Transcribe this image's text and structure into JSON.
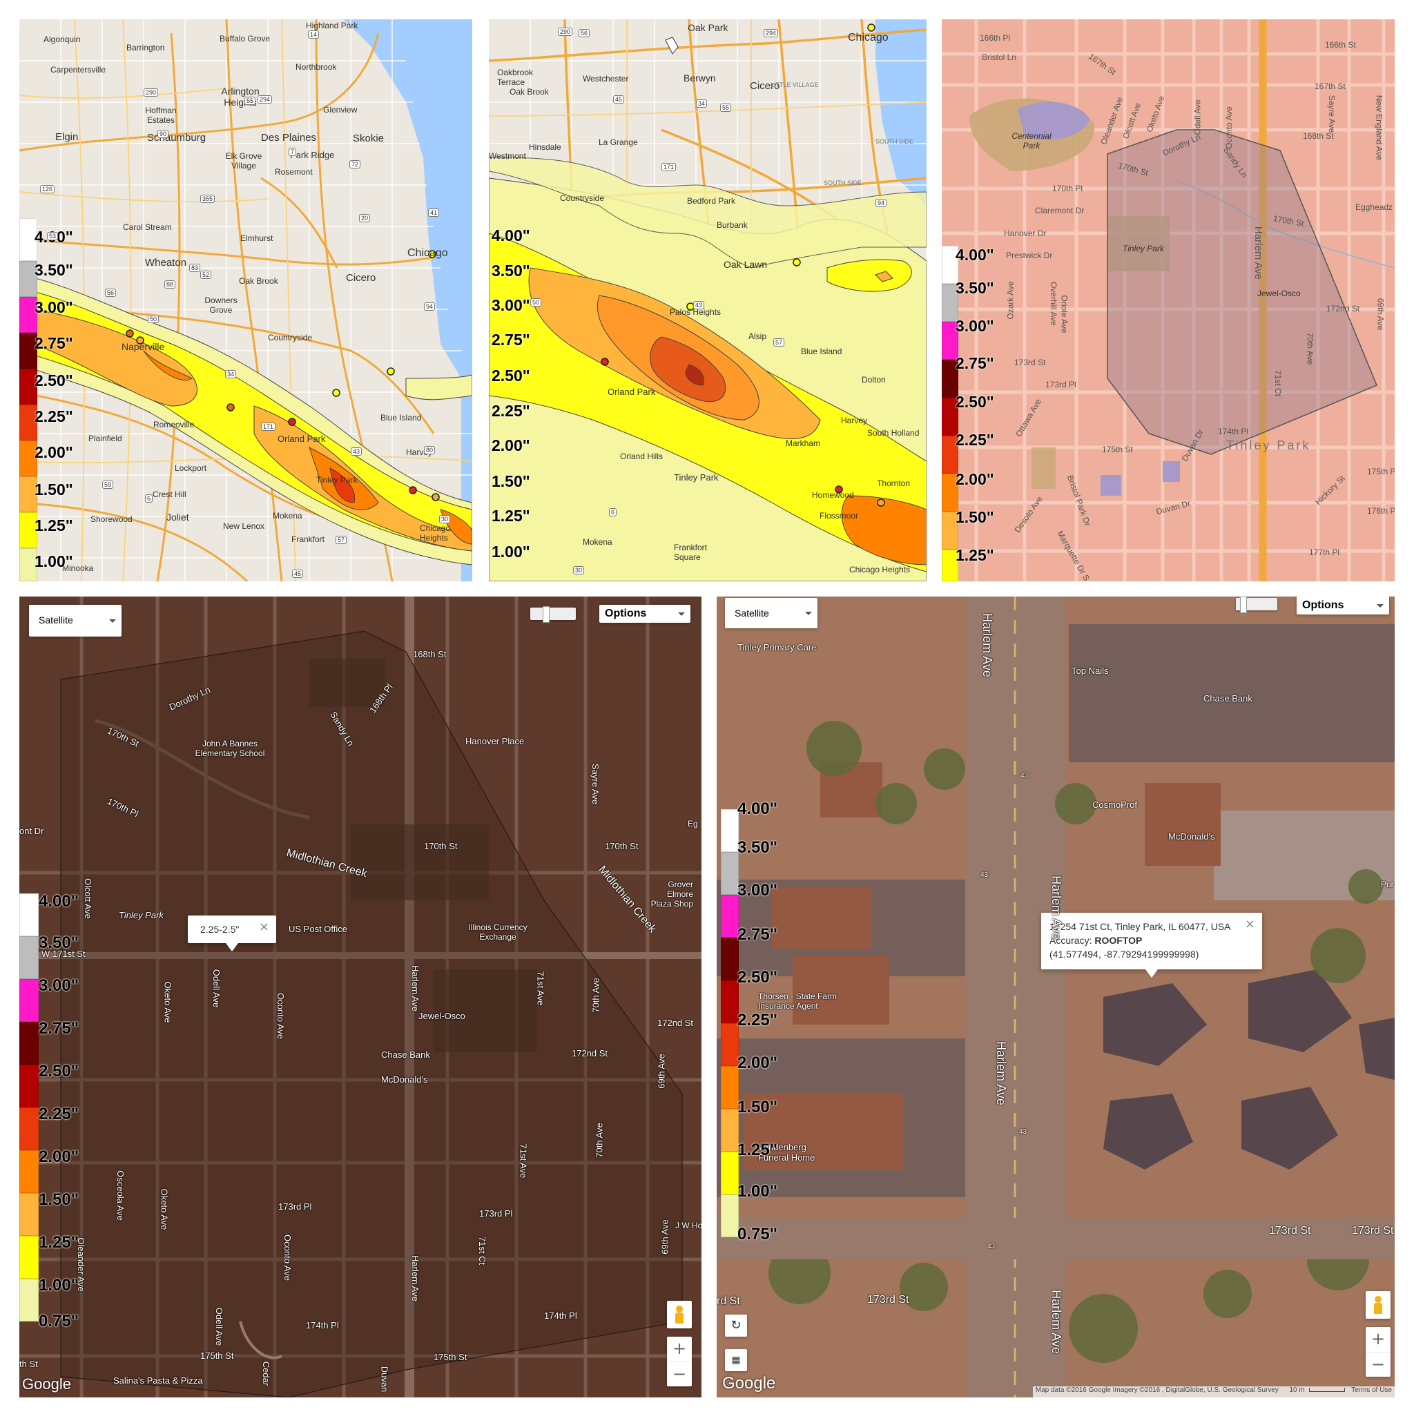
{
  "legend": {
    "ticks_a": [
      "4.00\"",
      "3.50\"",
      "3.00\"",
      "2.75\"",
      "2.50\"",
      "2.25\"",
      "2.00\"",
      "1.50\"",
      "1.25\"",
      "1.00\""
    ],
    "ticks_b": [
      "4.00\"",
      "3.50\"",
      "3.00\"",
      "2.75\"",
      "2.50\"",
      "2.25\"",
      "2.00\"",
      "1.50\"",
      "1.25\""
    ],
    "ticks_c": [
      "4.00\"",
      "3.50\"",
      "3.00\"",
      "2.75\"",
      "2.50\"",
      "2.25\"",
      "2.00\"",
      "1.50\"",
      "1.25\"",
      "1.00\"",
      "0.75\""
    ],
    "colors": [
      "#ffffff",
      "#bdbdbd",
      "#ff19c8",
      "#6b0000",
      "#b30000",
      "#ea3a0c",
      "#ff8300",
      "#ffb43c",
      "#ffff00",
      "#f0f4a6"
    ]
  },
  "panel1": {
    "cities": [
      "Highland Park",
      "Buffalo Grove",
      "Algonquin",
      "Barrington",
      "Northbrook",
      "Carpentersville",
      "Arlington Heights",
      "Glenview",
      "Hoffman Estates",
      "Elgin",
      "Schaumburg",
      "Des Plaines",
      "Skokie",
      "Elk Grove Village",
      "Park Ridge",
      "Rosemont",
      "Carol Stream",
      "Elmhurst",
      "Wheaton",
      "Oak Brook",
      "Cicero",
      "Chicago",
      "Downers Grove",
      "Naperville",
      "Countryside",
      "Blue Island",
      "Romeoville",
      "Plainfield",
      "Orland Park",
      "Harvey",
      "Lockport",
      "Tinley Park",
      "Crest Hill",
      "Joliet",
      "Shorewood",
      "New Lenox",
      "Mokena",
      "Frankfort",
      "Minooka",
      "Chicago Heights"
    ],
    "roads": [
      "90",
      "294",
      "290",
      "355",
      "88",
      "55",
      "94",
      "57",
      "80",
      "6",
      "30",
      "45",
      "171",
      "83",
      "43",
      "14",
      "41",
      "50",
      "72",
      "53",
      "59",
      "20",
      "126",
      "7",
      "52",
      "56",
      "34"
    ]
  },
  "panel2": {
    "cities": [
      "Oak Park",
      "Chicago",
      "Oakbrook Terrace",
      "Westchester",
      "Berwyn",
      "Cicero",
      "Oak Brook",
      "Hinsdale",
      "La Grange",
      "Westmont",
      "Countryside",
      "Bedford Park",
      "Burbank",
      "Oak Lawn",
      "Palos Heights",
      "Alsip",
      "Blue Island",
      "Dolton",
      "Orland Park",
      "Harvey",
      "Markham",
      "South Holland",
      "Tinley Park",
      "Orland Hills",
      "Homewood",
      "Thornton",
      "Flossmoor",
      "Mokena",
      "Frankfort Square",
      "Chicago Heights"
    ],
    "road_labels": [
      "LITTLE VILLAGE",
      "SOUTH SIDE",
      "SOUTH SIDE"
    ],
    "roads": [
      "290",
      "56",
      "294",
      "34",
      "45",
      "171",
      "55",
      "50",
      "94",
      "43",
      "30",
      "6",
      "57"
    ]
  },
  "panel3": {
    "streets": [
      "166th Pl",
      "Bristol Ln",
      "167th St",
      "166th St",
      "167th St",
      "168th St",
      "170th St",
      "170th Pl",
      "170th St",
      "Claremont Dr",
      "Hanover Dr",
      "Prestwick Dr",
      "172nd St",
      "173rd St",
      "173rd Pl",
      "174th Pl",
      "175th St",
      "175th Pl",
      "176th Pl",
      "177th Pl",
      "Duvan Dr",
      "Desoto Ave",
      "Bristol Park Dr",
      "Hickory St",
      "Marquette Dr S",
      "Oleander Ave",
      "Olcott Ave",
      "Oketo Ave",
      "Odell Ave",
      "Oconto Ave",
      "Harlem Ave",
      "Sayre Ave",
      "New England Ave",
      "Dorothy Ln",
      "Sandy Ln",
      "Ozark Ave",
      "Overhill Ave",
      "Oriole Ave",
      "71st Ct",
      "70th Ave",
      "69th Ave",
      "Ottawa Ave",
      "Duvan Dr",
      "Eggheadz"
    ],
    "places": [
      "Centennial Park",
      "Tinley Park",
      "Jewel-Osco",
      "Tinley Park"
    ]
  },
  "panel4": {
    "map_type": "Satellite",
    "options_label": "Options",
    "infowindow": "2.25-2.5\"",
    "close": "×",
    "zoom_in": "+",
    "zoom_out": "−",
    "streets": [
      "168th St",
      "168th Pl",
      "Dorothy Ln",
      "Sandy Ln",
      "170th St",
      "170th Pl",
      "Midlothian Creek",
      "170th St",
      "170th St",
      "Midlothian Creek",
      "W 171st St",
      "172nd St",
      "172nd St",
      "173rd Pl",
      "173rd Pl",
      "174th Pl",
      "174th Pl",
      "175th St",
      "175th St",
      "Harlem Ave",
      "Harlem Ave",
      "Sayre Ave",
      "70th Ave",
      "70th Ave",
      "69th Ave",
      "69th Ave",
      "71st Ave",
      "71st Ave",
      "71st Ct",
      "Olcott Ave",
      "Oleander Ave",
      "Oketo Ave",
      "Oketo Ave",
      "Odell Ave",
      "Odell Ave",
      "Oconto Ave",
      "Oconto Ave",
      "Osceola Ave",
      "Cedar",
      "Duvan",
      "ont Dr",
      "rd Pl",
      "th St",
      "J W Ho",
      "Eg"
    ],
    "places": [
      "John A Bannes Elementary School",
      "Hanover Place",
      "Tinley Park",
      "US Post Office",
      "Illinois Currency Exchange",
      "Grover Elmore Plaza Shop",
      "Jewel-Osco",
      "Chase Bank",
      "McDonald's",
      "Salina's Pasta & Pizza"
    ],
    "logo": "Google"
  },
  "panel5": {
    "map_type": "Satellite",
    "options_label": "Options",
    "address": "17254 71st Ct, Tinley Park, IL 60477, USA",
    "accuracy_label": "Accuracy:",
    "accuracy_value": "ROOFTOP",
    "coords": "(41.577494, -87.79294199999998)",
    "close": "×",
    "zoom_in": "+",
    "zoom_out": "−",
    "places": [
      "Tinley Primary Care",
      "Top Nails",
      "Chase Bank",
      "CosmoProf",
      "McDonald's",
      "Thorsen - State Farm Insurance Agent",
      "Vandenberg Funeral Home",
      "Pur"
    ],
    "streets": [
      "Harlem Ave",
      "Harlem Ave",
      "Harlem Ave",
      "Harlem Ave",
      "173rd St",
      "173rd St",
      "173rd St",
      "rd St"
    ],
    "roads": [
      "43",
      "43",
      "43",
      "43",
      "43"
    ],
    "logo": "Google",
    "attribution": "Map data ©2016 Google Imagery ©2016 , DigitalGlobe, U.S. Geological Survey",
    "scale": "10 m",
    "terms": "Terms of Use"
  }
}
